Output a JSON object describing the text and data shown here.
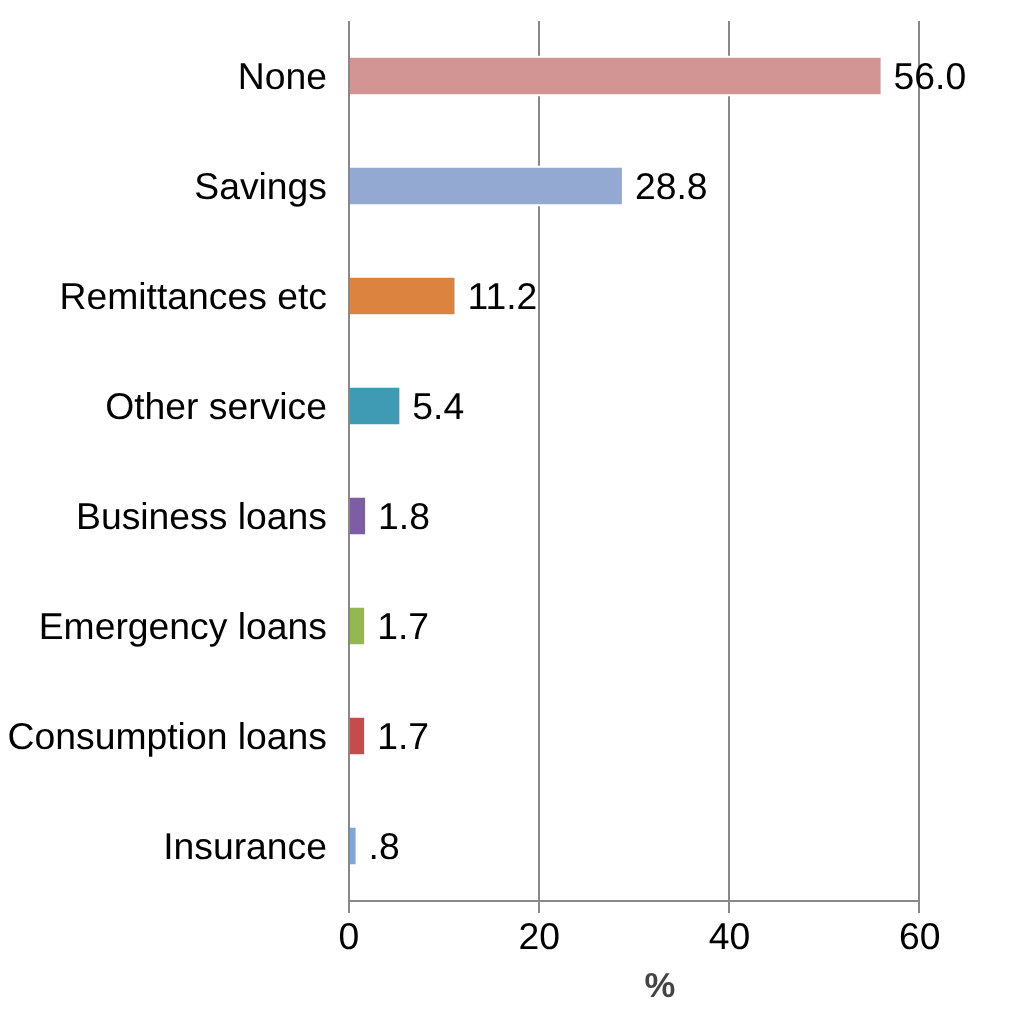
{
  "chart_data": {
    "type": "bar",
    "orientation": "horizontal",
    "xlabel": "%",
    "categories": [
      "None",
      "Savings",
      "Remittances etc",
      "Other service",
      "Business loans",
      "Emergency loans",
      "Consumption loans",
      "Insurance"
    ],
    "values": [
      56.0,
      28.8,
      11.2,
      5.4,
      1.8,
      1.7,
      1.7,
      0.8
    ],
    "colors": [
      "#d39494",
      "#93a9d2",
      "#dc843f",
      "#3f9bb3",
      "#7d5ea5",
      "#95b752",
      "#c24d4a",
      "#7fa6d8"
    ],
    "value_labels": [
      "56.0",
      "28.8",
      "11.2",
      "5.4",
      "1.8",
      "1.7",
      "1.7",
      ".8"
    ],
    "xlim": [
      0,
      60
    ],
    "xticks": [
      0,
      20,
      40,
      60
    ],
    "grid": "x"
  }
}
